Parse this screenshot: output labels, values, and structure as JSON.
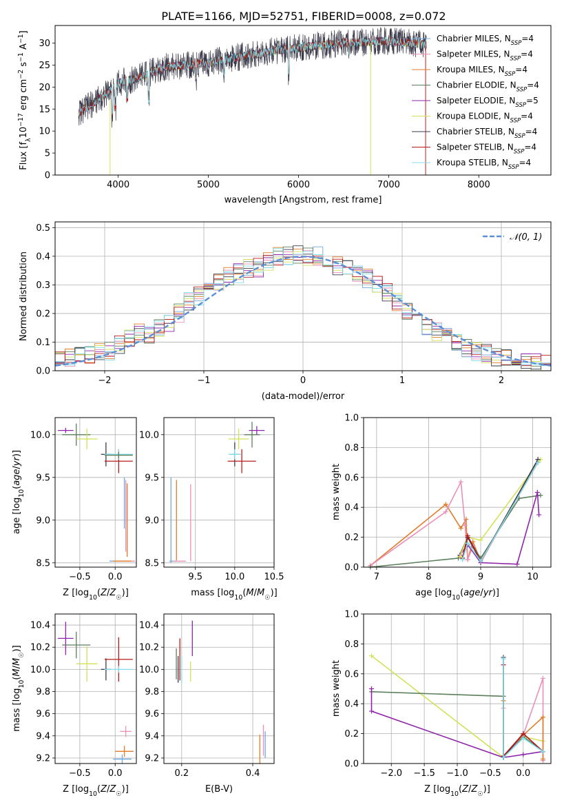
{
  "figure_title": "PLATE=1166, MJD=52751, FIBERID=0008, z=0.072",
  "colors": {
    "Chabrier MILES": "#6fa8dc",
    "Salpeter MILES": "#e98fb8",
    "Kroupa MILES": "#e07b2a",
    "Chabrier ELODIE": "#5a7f5a",
    "Salpeter ELODIE": "#8e24aa",
    "Kroupa ELODIE": "#d4e157",
    "Chabrier STELIB": "#3a3a4a",
    "Salpeter STELIB": "#b71c1c",
    "Kroupa STELIB": "#80deea",
    "gauss": "#5b8fd6"
  },
  "chart_data": [
    {
      "type": "line",
      "title": "PLATE=1166, MJD=52751, FIBERID=0008, z=0.072",
      "xlabel": "wavelength [Angstrom, rest frame]",
      "ylabel": "Flux [fλ10⁻¹⁷ erg cm⁻² s⁻¹ A⁻¹]",
      "xlim": [
        3300,
        8800
      ],
      "ylim": [
        0,
        34
      ],
      "xticks": [
        "4000",
        "5000",
        "6000",
        "7000",
        "8000"
      ],
      "yticks": [
        "0",
        "5",
        "10",
        "15",
        "20",
        "25",
        "30"
      ],
      "legend_position": "upper-right",
      "legend": [
        {
          "label": "Chabrier MILES, N",
          "sub": "SSP",
          "tail": "=4"
        },
        {
          "label": "Salpeter MILES, N",
          "sub": "SSP",
          "tail": "=4"
        },
        {
          "label": "Kroupa MILES, N",
          "sub": "SSP",
          "tail": "=4"
        },
        {
          "label": "Chabrier ELODIE, N",
          "sub": "SSP",
          "tail": "=4"
        },
        {
          "label": "Salpeter ELODIE, N",
          "sub": "SSP",
          "tail": "=5"
        },
        {
          "label": "Kroupa ELODIE, N",
          "sub": "SSP",
          "tail": "=4"
        },
        {
          "label": "Chabrier STELIB, N",
          "sub": "SSP",
          "tail": "=4"
        },
        {
          "label": "Salpeter STELIB, N",
          "sub": "SSP",
          "tail": "=4"
        },
        {
          "label": "Kroupa STELIB, N",
          "sub": "SSP",
          "tail": "=4"
        }
      ],
      "continuum": [
        [
          3550,
          14
        ],
        [
          3700,
          16
        ],
        [
          3900,
          19
        ],
        [
          4000,
          21
        ],
        [
          4200,
          22
        ],
        [
          4500,
          24.5
        ],
        [
          5000,
          25.5
        ],
        [
          5500,
          27.5
        ],
        [
          6000,
          29
        ],
        [
          6500,
          30
        ],
        [
          7000,
          30.5
        ],
        [
          7500,
          29.5
        ]
      ]
    },
    {
      "type": "histogram",
      "xlabel": "(data-model)/error",
      "ylabel": "Normed distribution",
      "xlim": [
        -2.5,
        2.5
      ],
      "ylim": [
        0,
        0.52
      ],
      "xticks": [
        "−2",
        "−1",
        "0",
        "1",
        "2"
      ],
      "yticks": [
        "0.0",
        "0.1",
        "0.2",
        "0.3",
        "0.4",
        "0.5"
      ],
      "legend": "𝒩(0, 1)",
      "legend_position": "upper-right",
      "bin_width": 0.1,
      "envelope": [
        0.04,
        0.05,
        0.05,
        0.06,
        0.06,
        0.07,
        0.09,
        0.11,
        0.13,
        0.13,
        0.15,
        0.17,
        0.2,
        0.24,
        0.26,
        0.28,
        0.31,
        0.33,
        0.34,
        0.36,
        0.36,
        0.38,
        0.4,
        0.4,
        0.41,
        0.4,
        0.4,
        0.39,
        0.37,
        0.36,
        0.34,
        0.32,
        0.3,
        0.27,
        0.24,
        0.21,
        0.19,
        0.16,
        0.14,
        0.12,
        0.1,
        0.08,
        0.07,
        0.06,
        0.05,
        0.04,
        0.04,
        0.03,
        0.03,
        0.02
      ]
    },
    {
      "type": "scatter",
      "xlabel": "Z [log10(Z/Z☉)]",
      "ylabel": "age  [log10(age/yr)]",
      "xlim": [
        -0.85,
        0.3
      ],
      "ylim": [
        8.45,
        10.2
      ],
      "xticks": [
        "−0.5",
        "0.0"
      ],
      "yticks": [
        "8.5",
        "9.0",
        "9.5",
        "10.0"
      ],
      "points": [
        {
          "s": "Chabrier MILES",
          "x": 0.05,
          "y": 8.52,
          "xe": 0.13,
          "ye": 0.0
        },
        {
          "s": "Salpeter MILES",
          "x": 0.15,
          "y": 8.52,
          "xe": 0.13,
          "ye": 0.0
        },
        {
          "s": "Kroupa MILES",
          "x": 0.1,
          "y": 8.52,
          "xe": 0.13,
          "ye": 0.0
        },
        {
          "s": "Salpeter MILES",
          "x": 0.15,
          "y": 9.05,
          "xe": 0.0,
          "ye": 0.42
        },
        {
          "s": "Kroupa MILES",
          "x": 0.17,
          "y": 9.0,
          "xe": 0.0,
          "ye": 0.43
        },
        {
          "s": "Chabrier MILES",
          "x": 0.13,
          "y": 9.2,
          "xe": 0.0,
          "ye": 0.3
        },
        {
          "s": "Salpeter ELODIE",
          "x": -0.7,
          "y": 10.05,
          "xe": 0.11,
          "ye": 0.03
        },
        {
          "s": "Chabrier ELODIE",
          "x": -0.55,
          "y": 10.0,
          "xe": 0.2,
          "ye": 0.13
        },
        {
          "s": "Kroupa ELODIE",
          "x": -0.4,
          "y": 9.95,
          "xe": 0.15,
          "ye": 0.12
        },
        {
          "s": "Chabrier STELIB",
          "x": -0.13,
          "y": 9.77,
          "xe": 0.07,
          "ye": 0.14
        },
        {
          "s": "Salpeter STELIB",
          "x": 0.05,
          "y": 9.69,
          "xe": 0.2,
          "ye": 0.14
        },
        {
          "s": "Kroupa STELIB",
          "x": 0.05,
          "y": 9.77,
          "xe": 0.2,
          "ye": 0.06
        },
        {
          "s": "Chabrier ELODIE",
          "x": 0.05,
          "y": 9.76,
          "xe": 0.2,
          "ye": 0.04
        }
      ]
    },
    {
      "type": "scatter",
      "xlabel": "mass [log10(M/M☉)]",
      "ylabel": "",
      "xlim": [
        9.1,
        10.5
      ],
      "ylim": [
        8.45,
        10.2
      ],
      "xticks": [
        "9.5",
        "10.0",
        "10.5"
      ],
      "yticks": [
        "8.5",
        "9.0",
        "9.5",
        "10.0"
      ],
      "points": [
        {
          "s": "Chabrier MILES",
          "x": 9.19,
          "y": 9.0,
          "xe": 0.0,
          "ye": 0.5
        },
        {
          "s": "Kroupa MILES",
          "x": 9.26,
          "y": 9.0,
          "xe": 0.0,
          "ye": 0.47
        },
        {
          "s": "Salpeter MILES",
          "x": 9.44,
          "y": 8.97,
          "xe": 0.0,
          "ye": 0.45
        },
        {
          "s": "Chabrier MILES",
          "x": 9.22,
          "y": 8.52,
          "xe": 0.05,
          "ye": 0.0
        },
        {
          "s": "Salpeter MILES",
          "x": 9.3,
          "y": 8.52,
          "xe": 0.08,
          "ye": 0.0
        },
        {
          "s": "Chabrier STELIB",
          "x": 10.0,
          "y": 9.77,
          "xe": 0.05,
          "ye": 0.14
        },
        {
          "s": "Salpeter STELIB",
          "x": 10.09,
          "y": 9.69,
          "xe": 0.18,
          "ye": 0.14
        },
        {
          "s": "Kroupa ELODIE",
          "x": 10.05,
          "y": 9.95,
          "xe": 0.13,
          "ye": 0.12
        },
        {
          "s": "Chabrier ELODIE",
          "x": 10.22,
          "y": 10.0,
          "xe": 0.1,
          "ye": 0.15
        },
        {
          "s": "Salpeter ELODIE",
          "x": 10.28,
          "y": 10.05,
          "xe": 0.1,
          "ye": 0.05
        },
        {
          "s": "Kroupa STELIB",
          "x": 10.0,
          "y": 9.77,
          "xe": 0.08,
          "ye": 0.06
        }
      ]
    },
    {
      "type": "line",
      "xlabel": "age  [log10(age/yr)]",
      "ylabel": "mass weight",
      "xlim": [
        6.75,
        10.35
      ],
      "ylim": [
        0.0,
        1.0
      ],
      "xticks": [
        "7",
        "8",
        "9",
        "10"
      ],
      "yticks": [
        "0.0",
        "0.2",
        "0.4",
        "0.6",
        "0.8",
        "1.0"
      ],
      "series": [
        {
          "s": "Kroupa MILES",
          "pts": [
            [
              6.88,
              0.01
            ],
            [
              8.33,
              0.42
            ],
            [
              8.62,
              0.26
            ],
            [
              8.72,
              0.32
            ],
            [
              8.75,
              0.05
            ],
            [
              8.85,
              0.17
            ],
            [
              9.0,
              0.04
            ],
            [
              10.1,
              0.72
            ]
          ]
        },
        {
          "s": "Salpeter MILES",
          "pts": [
            [
              6.88,
              0.01
            ],
            [
              8.33,
              0.37
            ],
            [
              8.62,
              0.57
            ],
            [
              8.7,
              0.28
            ],
            [
              8.75,
              0.05
            ],
            [
              8.85,
              0.14
            ],
            [
              9.0,
              0.03
            ],
            [
              10.1,
              0.72
            ]
          ]
        },
        {
          "s": "Chabrier ELODIE",
          "pts": [
            [
              6.88,
              0.0
            ],
            [
              8.57,
              0.06
            ],
            [
              8.75,
              0.2
            ],
            [
              9.0,
              0.06
            ],
            [
              9.74,
              0.46
            ],
            [
              10.15,
              0.48
            ]
          ]
        },
        {
          "s": "Salpeter ELODIE",
          "pts": [
            [
              8.6,
              0.08
            ],
            [
              8.75,
              0.15
            ],
            [
              9.0,
              0.03
            ],
            [
              9.7,
              0.02
            ],
            [
              10.09,
              0.5
            ],
            [
              10.12,
              0.35
            ]
          ]
        },
        {
          "s": "Kroupa ELODIE",
          "pts": [
            [
              8.6,
              0.07
            ],
            [
              8.75,
              0.2
            ],
            [
              9.0,
              0.18
            ],
            [
              10.15,
              0.72
            ]
          ]
        },
        {
          "s": "Chabrier STELIB",
          "pts": [
            [
              8.65,
              0.06
            ],
            [
              8.75,
              0.2
            ],
            [
              9.0,
              0.04
            ],
            [
              10.1,
              0.72
            ]
          ]
        },
        {
          "s": "Salpeter STELIB",
          "pts": [
            [
              8.65,
              0.06
            ],
            [
              8.75,
              0.21
            ],
            [
              9.0,
              0.04
            ],
            [
              10.1,
              0.7
            ]
          ]
        },
        {
          "s": "Kroupa STELIB",
          "pts": [
            [
              8.65,
              0.05
            ],
            [
              8.75,
              0.16
            ],
            [
              9.0,
              0.04
            ],
            [
              10.1,
              0.7
            ]
          ]
        }
      ]
    },
    {
      "type": "scatter",
      "xlabel": "Z [log10(Z/Z☉)]",
      "ylabel": "mass [log10(M/M☉)]",
      "xlim": [
        -0.85,
        0.3
      ],
      "ylim": [
        9.15,
        10.5
      ],
      "xticks": [
        "−0.5",
        "0.0"
      ],
      "yticks": [
        "9.2",
        "9.4",
        "9.6",
        "9.8",
        "10.0",
        "10.2",
        "10.4"
      ],
      "points": [
        {
          "s": "Salpeter ELODIE",
          "x": -0.7,
          "y": 10.28,
          "xe": 0.11,
          "ye": 0.15
        },
        {
          "s": "Chabrier ELODIE",
          "x": -0.55,
          "y": 10.22,
          "xe": 0.2,
          "ye": 0.12
        },
        {
          "s": "Kroupa ELODIE",
          "x": -0.4,
          "y": 10.05,
          "xe": 0.15,
          "ye": 0.16
        },
        {
          "s": "Chabrier STELIB",
          "x": -0.13,
          "y": 10.0,
          "xe": 0.07,
          "ye": 0.1
        },
        {
          "s": "Salpeter STELIB",
          "x": 0.05,
          "y": 10.09,
          "xe": 0.2,
          "ye": 0.2
        },
        {
          "s": "Kroupa STELIB",
          "x": 0.05,
          "y": 10.0,
          "xe": 0.2,
          "ye": 0.03
        },
        {
          "s": "Salpeter MILES",
          "x": 0.15,
          "y": 9.44,
          "xe": 0.08,
          "ye": 0.05
        },
        {
          "s": "Kroupa MILES",
          "x": 0.13,
          "y": 9.26,
          "xe": 0.13,
          "ye": 0.05
        },
        {
          "s": "Chabrier MILES",
          "x": 0.1,
          "y": 9.19,
          "xe": 0.13,
          "ye": 0.04
        }
      ]
    },
    {
      "type": "scatter",
      "xlabel": "E(B-V)",
      "ylabel": "",
      "xlim": [
        0.15,
        0.46
      ],
      "ylim": [
        9.15,
        10.5
      ],
      "xticks": [
        "0.2",
        "0.4"
      ],
      "yticks": [
        "9.2",
        "9.4",
        "9.6",
        "9.8",
        "10.0",
        "10.2",
        "10.4"
      ],
      "points": [
        {
          "s": "Chabrier STELIB",
          "x": 0.19,
          "y": 10.0,
          "xe": 0.0,
          "ye": 0.12
        },
        {
          "s": "Salpeter STELIB",
          "x": 0.195,
          "y": 10.09,
          "xe": 0.0,
          "ye": 0.19
        },
        {
          "s": "Kroupa STELIB",
          "x": 0.2,
          "y": 10.0,
          "xe": 0.0,
          "ye": 0.12
        },
        {
          "s": "Chabrier ELODIE",
          "x": 0.185,
          "y": 10.05,
          "xe": 0.0,
          "ye": 0.14
        },
        {
          "s": "Salpeter ELODIE",
          "x": 0.23,
          "y": 10.28,
          "xe": 0.0,
          "ye": 0.16
        },
        {
          "s": "Kroupa ELODIE",
          "x": 0.225,
          "y": 9.98,
          "xe": 0.0,
          "ye": 0.09
        },
        {
          "s": "Kroupa MILES",
          "x": 0.42,
          "y": 9.28,
          "xe": 0.0,
          "ye": 0.13
        },
        {
          "s": "Salpeter MILES",
          "x": 0.43,
          "y": 9.36,
          "xe": 0.0,
          "ye": 0.14
        },
        {
          "s": "Chabrier MILES",
          "x": 0.435,
          "y": 9.32,
          "xe": 0.0,
          "ye": 0.12
        }
      ]
    },
    {
      "type": "line",
      "xlabel": "Z [log10(Z/Z☉)]",
      "ylabel": "mass weight",
      "xlim": [
        -2.42,
        0.42
      ],
      "ylim": [
        0.0,
        1.0
      ],
      "xticks": [
        "−2.0",
        "−1.5",
        "−1.0",
        "−0.5",
        "0.0"
      ],
      "yticks": [
        "0.0",
        "0.2",
        "0.4",
        "0.6",
        "0.8",
        "1.0"
      ],
      "series": [
        {
          "s": "Kroupa ELODIE",
          "pts": [
            [
              -2.3,
              0.72
            ],
            [
              -0.3,
              0.04
            ],
            [
              0.0,
              0.18
            ],
            [
              0.3,
              0.15
            ]
          ]
        },
        {
          "s": "Chabrier ELODIE",
          "pts": [
            [
              -2.3,
              0.48
            ],
            [
              -0.3,
              0.45
            ],
            [
              -0.3,
              0.04
            ],
            [
              0.0,
              0.18
            ],
            [
              0.3,
              0.08
            ]
          ]
        },
        {
          "s": "Salpeter ELODIE",
          "pts": [
            [
              -2.3,
              0.5
            ],
            [
              -2.3,
              0.35
            ],
            [
              -0.3,
              0.04
            ],
            [
              0.0,
              0.06
            ],
            [
              0.3,
              0.08
            ]
          ]
        },
        {
          "s": "Salpeter MILES",
          "pts": [
            [
              -0.3,
              0.37
            ],
            [
              -0.3,
              0.04
            ],
            [
              0.0,
              0.19
            ],
            [
              0.3,
              0.57
            ],
            [
              0.3,
              0.02
            ]
          ]
        },
        {
          "s": "Kroupa MILES",
          "pts": [
            [
              -0.3,
              0.42
            ],
            [
              -0.3,
              0.05
            ],
            [
              0.0,
              0.19
            ],
            [
              0.3,
              0.31
            ],
            [
              0.3,
              0.03
            ]
          ]
        },
        {
          "s": "Chabrier STELIB",
          "pts": [
            [
              -0.3,
              0.71
            ],
            [
              -0.3,
              0.04
            ],
            [
              0.0,
              0.2
            ],
            [
              0.3,
              0.08
            ]
          ]
        },
        {
          "s": "Salpeter STELIB",
          "pts": [
            [
              -0.3,
              0.66
            ],
            [
              -0.3,
              0.05
            ],
            [
              0.0,
              0.2
            ],
            [
              0.3,
              0.08
            ]
          ]
        },
        {
          "s": "Kroupa STELIB",
          "pts": [
            [
              -0.3,
              0.7
            ],
            [
              -0.3,
              0.04
            ],
            [
              0.0,
              0.17
            ],
            [
              0.3,
              0.08
            ]
          ]
        }
      ]
    }
  ]
}
